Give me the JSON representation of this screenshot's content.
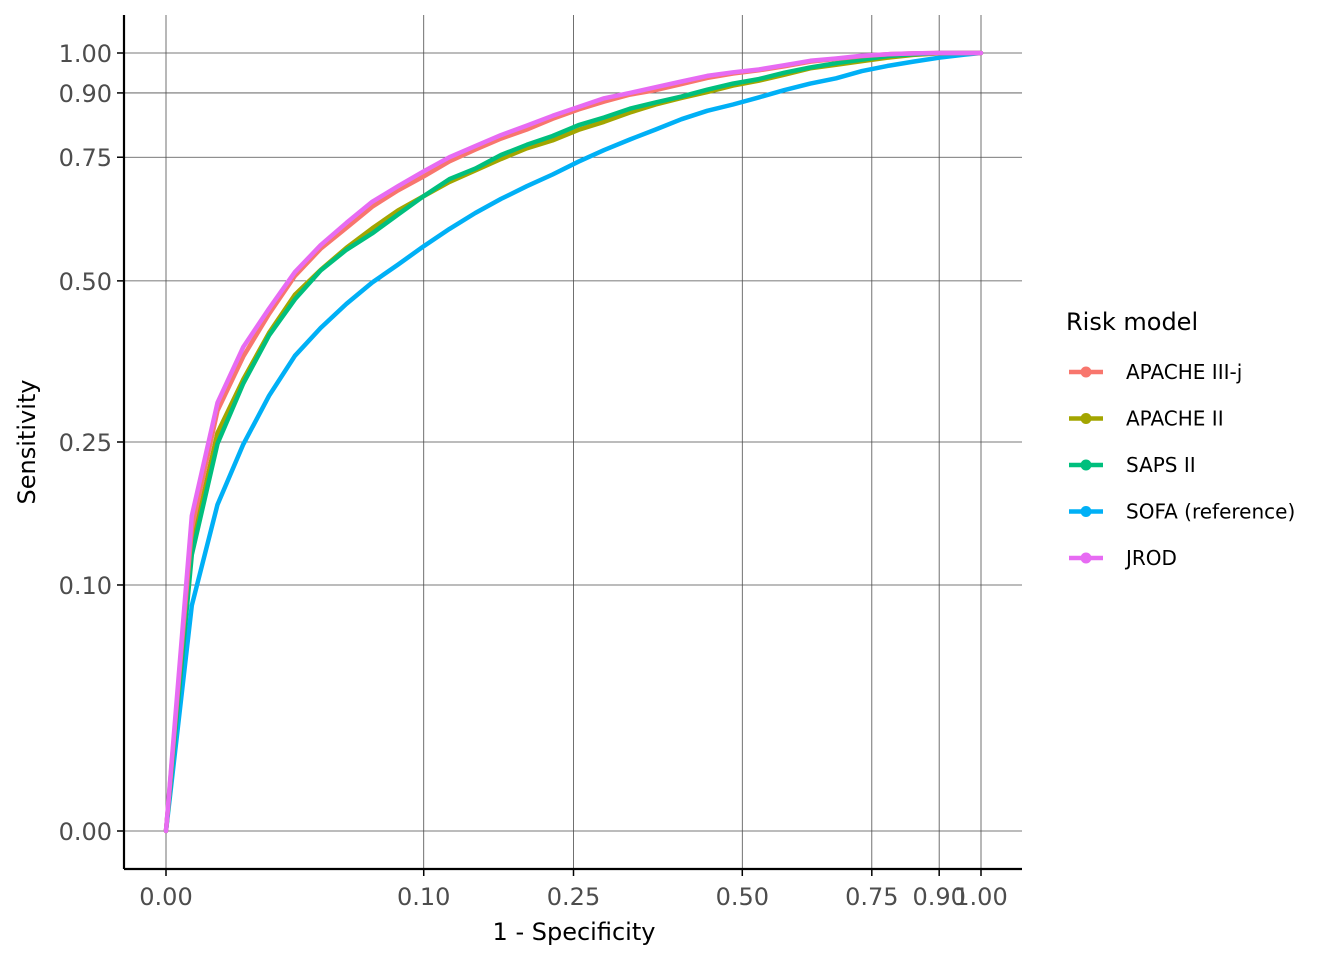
{
  "chart_data": {
    "type": "line",
    "title": "",
    "xlabel": "1 - Specificity",
    "ylabel": "Sensitivity",
    "xlim": [
      0,
      1
    ],
    "ylim": [
      0,
      1
    ],
    "scale": "sqrt",
    "grid": true,
    "legend_position": "right",
    "x_ticks": [
      {
        "value": 0.0,
        "label": "0.00"
      },
      {
        "value": 0.1,
        "label": "0.10"
      },
      {
        "value": 0.25,
        "label": "0.25"
      },
      {
        "value": 0.5,
        "label": "0.50"
      },
      {
        "value": 0.75,
        "label": "0.75"
      },
      {
        "value": 0.9,
        "label": "0.90"
      },
      {
        "value": 1.0,
        "label": "1.00"
      }
    ],
    "y_ticks": [
      {
        "value": 0.0,
        "label": "0.00"
      },
      {
        "value": 0.1,
        "label": "0.10"
      },
      {
        "value": 0.25,
        "label": "0.25"
      },
      {
        "value": 0.5,
        "label": "0.50"
      },
      {
        "value": 0.75,
        "label": "0.75"
      },
      {
        "value": 0.9,
        "label": "0.90"
      },
      {
        "value": 1.0,
        "label": "1.00"
      }
    ],
    "legend_title": "Risk model",
    "series": [
      {
        "name": "APACHE III-j",
        "color": "#F8766D",
        "x": [
          0,
          0.001,
          0.004,
          0.009,
          0.016,
          0.025,
          0.036,
          0.049,
          0.064,
          0.081,
          0.1,
          0.121,
          0.144,
          0.169,
          0.196,
          0.225,
          0.256,
          0.289,
          0.324,
          0.361,
          0.4,
          0.441,
          0.484,
          0.529,
          0.576,
          0.625,
          0.676,
          0.729,
          0.784,
          0.841,
          0.9,
          0.96,
          1.0
        ],
        "y": [
          0,
          0.151,
          0.292,
          0.372,
          0.442,
          0.509,
          0.56,
          0.601,
          0.644,
          0.678,
          0.708,
          0.741,
          0.767,
          0.792,
          0.813,
          0.838,
          0.86,
          0.879,
          0.896,
          0.907,
          0.922,
          0.937,
          0.948,
          0.956,
          0.966,
          0.978,
          0.985,
          0.992,
          0.997,
          0.999,
          1.0,
          1.0,
          1.0
        ]
      },
      {
        "name": "APACHE II",
        "color": "#A3A500",
        "x": [
          0,
          0.001,
          0.004,
          0.009,
          0.016,
          0.025,
          0.036,
          0.049,
          0.064,
          0.081,
          0.1,
          0.121,
          0.144,
          0.169,
          0.196,
          0.225,
          0.256,
          0.289,
          0.324,
          0.361,
          0.4,
          0.441,
          0.484,
          0.529,
          0.576,
          0.625,
          0.676,
          0.729,
          0.784,
          0.841,
          0.9,
          0.96,
          1.0
        ],
        "y": [
          0,
          0.133,
          0.262,
          0.337,
          0.41,
          0.475,
          0.52,
          0.562,
          0.6,
          0.636,
          0.666,
          0.696,
          0.721,
          0.746,
          0.77,
          0.788,
          0.812,
          0.831,
          0.853,
          0.872,
          0.888,
          0.902,
          0.918,
          0.93,
          0.945,
          0.961,
          0.97,
          0.979,
          0.988,
          0.995,
          0.999,
          1.0,
          1.0
        ]
      },
      {
        "name": "SAPS II",
        "color": "#00BF7D",
        "x": [
          0,
          0.001,
          0.004,
          0.009,
          0.016,
          0.025,
          0.036,
          0.049,
          0.064,
          0.081,
          0.1,
          0.121,
          0.144,
          0.169,
          0.196,
          0.225,
          0.256,
          0.289,
          0.324,
          0.361,
          0.4,
          0.441,
          0.484,
          0.529,
          0.576,
          0.625,
          0.676,
          0.729,
          0.784,
          0.841,
          0.9,
          0.96,
          1.0
        ],
        "y": [
          0,
          0.126,
          0.248,
          0.331,
          0.406,
          0.467,
          0.519,
          0.558,
          0.59,
          0.628,
          0.666,
          0.702,
          0.725,
          0.755,
          0.778,
          0.798,
          0.823,
          0.841,
          0.862,
          0.877,
          0.891,
          0.908,
          0.923,
          0.934,
          0.95,
          0.963,
          0.974,
          0.983,
          0.992,
          0.997,
          1.0,
          1.0,
          1.0
        ]
      },
      {
        "name": "SOFA (reference)",
        "color": "#00B0F6",
        "x": [
          0,
          0.001,
          0.004,
          0.009,
          0.016,
          0.025,
          0.036,
          0.049,
          0.064,
          0.081,
          0.1,
          0.121,
          0.144,
          0.169,
          0.196,
          0.225,
          0.256,
          0.289,
          0.324,
          0.361,
          0.4,
          0.441,
          0.484,
          0.529,
          0.576,
          0.625,
          0.676,
          0.729,
          0.784,
          0.841,
          0.9,
          0.96,
          1.0
        ],
        "y": [
          0,
          0.084,
          0.176,
          0.247,
          0.313,
          0.373,
          0.418,
          0.459,
          0.497,
          0.53,
          0.565,
          0.599,
          0.631,
          0.66,
          0.687,
          0.712,
          0.74,
          0.766,
          0.79,
          0.813,
          0.837,
          0.857,
          0.872,
          0.889,
          0.907,
          0.923,
          0.936,
          0.954,
          0.967,
          0.978,
          0.988,
          0.996,
          1.0
        ]
      },
      {
        "name": "JROD",
        "color": "#E76BF3",
        "x": [
          0,
          0.001,
          0.004,
          0.009,
          0.016,
          0.025,
          0.036,
          0.049,
          0.064,
          0.081,
          0.1,
          0.121,
          0.144,
          0.169,
          0.196,
          0.225,
          0.256,
          0.289,
          0.324,
          0.361,
          0.4,
          0.441,
          0.484,
          0.529,
          0.576,
          0.625,
          0.676,
          0.729,
          0.784,
          0.841,
          0.9,
          0.96,
          1.0
        ],
        "y": [
          0,
          0.164,
          0.303,
          0.387,
          0.451,
          0.516,
          0.567,
          0.611,
          0.654,
          0.687,
          0.719,
          0.75,
          0.775,
          0.8,
          0.822,
          0.845,
          0.866,
          0.887,
          0.9,
          0.914,
          0.928,
          0.942,
          0.951,
          0.958,
          0.969,
          0.98,
          0.986,
          0.993,
          0.997,
          0.999,
          1.0,
          1.0,
          1.0
        ]
      }
    ]
  }
}
